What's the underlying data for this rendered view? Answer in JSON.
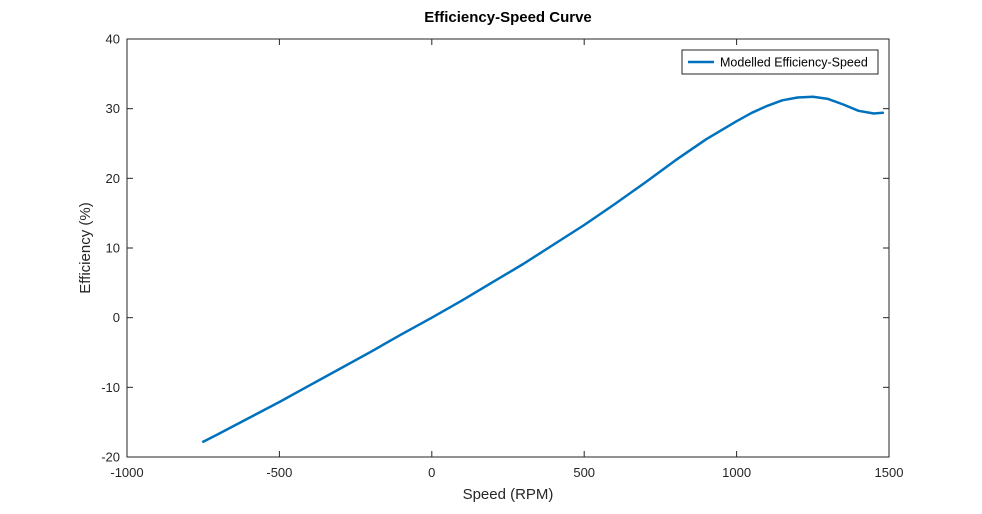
{
  "chart_data": {
    "type": "line",
    "title": "Efficiency-Speed Curve",
    "xlabel": "Speed (RPM)",
    "ylabel": "Efficiency (%)",
    "xlim": [
      -1000,
      1500
    ],
    "ylim": [
      -20,
      40
    ],
    "xticks": [
      -1000,
      -500,
      0,
      500,
      1000,
      1500
    ],
    "yticks": [
      -20,
      -10,
      0,
      10,
      20,
      30,
      40
    ],
    "grid": false,
    "legend_position": "top-right",
    "series": [
      {
        "name": "Modelled Efficiency-Speed",
        "color": "#0072BD",
        "x": [
          -750,
          -700,
          -600,
          -500,
          -400,
          -300,
          -200,
          -100,
          0,
          100,
          200,
          300,
          400,
          500,
          600,
          700,
          800,
          900,
          1000,
          1050,
          1100,
          1150,
          1200,
          1250,
          1300,
          1350,
          1400,
          1450,
          1480
        ],
        "y": [
          -17.8,
          -16.7,
          -14.4,
          -12.1,
          -9.7,
          -7.3,
          -4.9,
          -2.4,
          0.0,
          2.5,
          5.1,
          7.7,
          10.5,
          13.3,
          16.3,
          19.4,
          22.6,
          25.6,
          28.2,
          29.4,
          30.4,
          31.2,
          31.6,
          31.7,
          31.4,
          30.6,
          29.7,
          29.3,
          29.4
        ]
      }
    ]
  }
}
